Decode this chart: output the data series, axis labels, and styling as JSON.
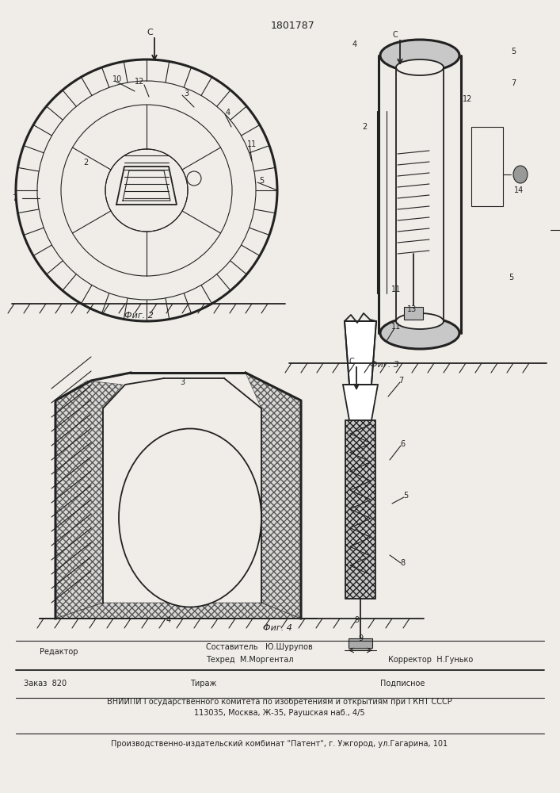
{
  "patent_number": "1801787",
  "title_fig2": "Фиг. 2",
  "title_fig3": "Фиг. 3",
  "title_fig4": "Фиг. 4",
  "editor_line": "Редактор",
  "compiler_line": "Составитель   Ю.Шурупов",
  "techred_line": "Техред  М.Моргентал",
  "corrector_line": "Корректор  Н.Гунько",
  "order_line": "Заказ  820",
  "tirazh_line": "Тираж",
  "podpisnoe_line": "Подписное",
  "vnipi_line1": "ВНИИПИ Государственного комитета по изобретениям и открытиям при ГКНТ СССР",
  "vnipi_line2": "113035, Москва, Ж-35, Раушская наб., 4/5",
  "factory_line": "Производственно-издательский комбинат \"Патент\", г. Ужгород, ул.Гагарина, 101",
  "bg_color": "#f0ede8",
  "line_color": "#222222"
}
